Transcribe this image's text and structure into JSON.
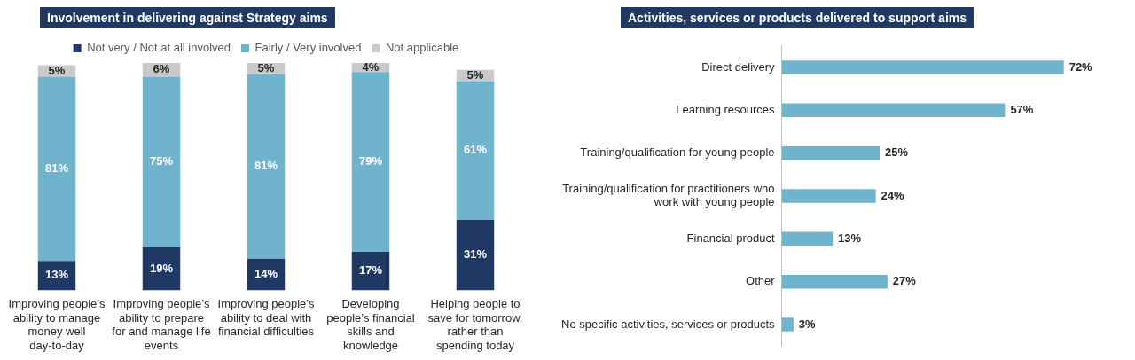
{
  "chart_data": [
    {
      "type": "bar",
      "title": "Involvement in delivering against Strategy aims",
      "categories": [
        "Improving people’s ability to manage money well day-to-day",
        "Improving people’s ability to prepare for and manage life events",
        "Improving people’s ability to deal with financial difficulties",
        "Developing people’s financial skills and knowledge",
        "Helping people to save for tomorrow, rather than spending today"
      ],
      "stacked": true,
      "legend": "top",
      "tick_labels": "x",
      "series": [
        {
          "name": "Not very / Not at all involved",
          "color": "#1f3864",
          "values": [
            13,
            19,
            14,
            17,
            31
          ],
          "value_labels": [
            "13%",
            "19%",
            "14%",
            "17%",
            "31%"
          ]
        },
        {
          "name": "Fairly / Very involved",
          "color": "#70b3cd",
          "values": [
            81,
            75,
            81,
            79,
            61
          ],
          "value_labels": [
            "81%",
            "75%",
            "81%",
            "79%",
            "61%"
          ]
        },
        {
          "name": "Not applicable",
          "color": "#c9c9c9",
          "values": [
            5,
            6,
            5,
            4,
            5
          ],
          "value_labels": [
            "5%",
            "6%",
            "5%",
            "4%",
            "5%"
          ]
        }
      ]
    },
    {
      "type": "bar",
      "title": "Activities, services or products delivered to support aims",
      "orientation": "horizontal",
      "tick_labels": "y",
      "categories": [
        "Direct delivery",
        "Learning resources",
        "Training/qualification for young people",
        "Training/qualification for practitioners who work with young people",
        "Financial product",
        "Other",
        "No specific activities, services or products"
      ],
      "series": [
        {
          "color": "#70b3cd",
          "values": [
            72,
            57,
            25,
            24,
            13,
            27,
            3
          ],
          "value_labels": [
            "72%",
            "57%",
            "25%",
            "24%",
            "13%",
            "27%",
            "3%"
          ]
        }
      ]
    }
  ]
}
